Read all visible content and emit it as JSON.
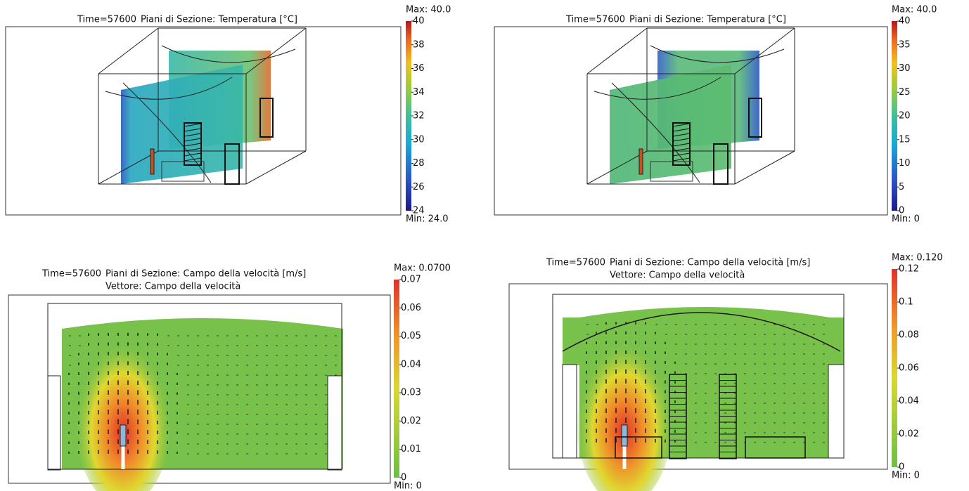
{
  "panels": [
    {
      "time": "Time=57600",
      "title": "Piani di Sezione: Temperatura [°C]",
      "max_label": "Max: 40.0",
      "min_label": "Min: 24.0",
      "ticks": [
        "40",
        "38",
        "36",
        "34",
        "32",
        "30",
        "28",
        "26",
        "24"
      ]
    },
    {
      "time": "Time=57600",
      "title": "Piani di Sezione: Temperatura [°C]",
      "max_label": "Max: 40.0",
      "min_label": "Min: 0",
      "ticks": [
        "40",
        "35",
        "30",
        "25",
        "20",
        "15",
        "10",
        "5",
        "0"
      ]
    },
    {
      "time": "Time=57600",
      "title": "Piani di Sezione: Campo della velocità [m/s]",
      "subtitle": "Vettore: Campo della velocità",
      "max_label": "Max: 0.0700",
      "min_label": "Min: 0",
      "ticks": [
        "0.07",
        "0.06",
        "0.05",
        "0.04",
        "0.03",
        "0.02",
        "0.01",
        "0"
      ]
    },
    {
      "time": "Time=57600",
      "title": "Piani di Sezione: Campo della velocità [m/s]",
      "subtitle": "Vettore: Campo della velocità",
      "max_label": "Max: 0.120",
      "min_label": "Min: 0",
      "ticks": [
        "0.12",
        "0.1",
        "0.08",
        "0.06",
        "0.04",
        "0.02",
        "0"
      ]
    }
  ]
}
